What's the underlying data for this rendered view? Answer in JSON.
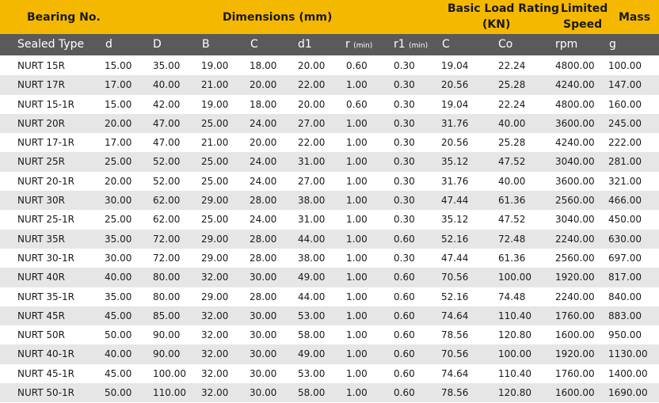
{
  "top_header": {
    "bearing_no": "Bearing No.",
    "dimensions": "Dimensions (mm)",
    "basic_load_rating": "Basic Load Rating",
    "kn": "(KN)",
    "limited": "Limited",
    "speed": "Speed",
    "mass": "Mass"
  },
  "sub_header": {
    "sealed_type": "Sealed Type",
    "d": "d",
    "D": "D",
    "B": "B",
    "C": "C",
    "d1": "d1",
    "r": "r",
    "r_min": "(min)",
    "r1": "r1",
    "r1_min": "(min)",
    "C_load": "C",
    "Co": "Co",
    "rpm": "rpm",
    "g": "g"
  },
  "rows": [
    [
      "NURT 15R",
      "15.00",
      "35.00",
      "19.00",
      "18.00",
      "20.00",
      "0.60",
      "0.30",
      "19.04",
      "22.24",
      "4800.00",
      "100.00"
    ],
    [
      "NURT 17R",
      "17.00",
      "40.00",
      "21.00",
      "20.00",
      "22.00",
      "1.00",
      "0.30",
      "20.56",
      "25.28",
      "4240.00",
      "147.00"
    ],
    [
      "NURT 15-1R",
      "15.00",
      "42.00",
      "19.00",
      "18.00",
      "20.00",
      "0.60",
      "0.30",
      "19.04",
      "22.24",
      "4800.00",
      "160.00"
    ],
    [
      "NURT 20R",
      "20.00",
      "47.00",
      "25.00",
      "24.00",
      "27.00",
      "1.00",
      "0.30",
      "31.76",
      "40.00",
      "3600.00",
      "245.00"
    ],
    [
      "NURT 17-1R",
      "17.00",
      "47.00",
      "21.00",
      "20.00",
      "22.00",
      "1.00",
      "0.30",
      "20.56",
      "25.28",
      "4240.00",
      "222.00"
    ],
    [
      "NURT 25R",
      "25.00",
      "52.00",
      "25.00",
      "24.00",
      "31.00",
      "1.00",
      "0.30",
      "35.12",
      "47.52",
      "3040.00",
      "281.00"
    ],
    [
      "NURT 20-1R",
      "20.00",
      "52.00",
      "25.00",
      "24.00",
      "27.00",
      "1.00",
      "0.30",
      "31.76",
      "40.00",
      "3600.00",
      "321.00"
    ],
    [
      "NURT 30R",
      "30.00",
      "62.00",
      "29.00",
      "28.00",
      "38.00",
      "1.00",
      "0.30",
      "47.44",
      "61.36",
      "2560.00",
      "466.00"
    ],
    [
      "NURT 25-1R",
      "25.00",
      "62.00",
      "25.00",
      "24.00",
      "31.00",
      "1.00",
      "0.30",
      "35.12",
      "47.52",
      "3040.00",
      "450.00"
    ],
    [
      "NURT 35R",
      "35.00",
      "72.00",
      "29.00",
      "28.00",
      "44.00",
      "1.00",
      "0.60",
      "52.16",
      "72.48",
      "2240.00",
      "630.00"
    ],
    [
      "NURT 30-1R",
      "30.00",
      "72.00",
      "29.00",
      "28.00",
      "38.00",
      "1.00",
      "0.30",
      "47.44",
      "61.36",
      "2560.00",
      "697.00"
    ],
    [
      "NURT 40R",
      "40.00",
      "80.00",
      "32.00",
      "30.00",
      "49.00",
      "1.00",
      "0.60",
      "70.56",
      "100.00",
      "1920.00",
      "817.00"
    ],
    [
      "NURT 35-1R",
      "35.00",
      "80.00",
      "29.00",
      "28.00",
      "44.00",
      "1.00",
      "0.60",
      "52.16",
      "74.48",
      "2240.00",
      "840.00"
    ],
    [
      "NURT 45R",
      "45.00",
      "85.00",
      "32.00",
      "30.00",
      "53.00",
      "1.00",
      "0.60",
      "74.64",
      "110.40",
      "1760.00",
      "883.00"
    ],
    [
      "NURT 50R",
      "50.00",
      "90.00",
      "32.00",
      "30.00",
      "58.00",
      "1.00",
      "0.60",
      "78.56",
      "120.80",
      "1600.00",
      "950.00"
    ],
    [
      "NURT 40-1R",
      "40.00",
      "90.00",
      "32.00",
      "30.00",
      "49.00",
      "1.00",
      "0.60",
      "70.56",
      "100.00",
      "1920.00",
      "1130.00"
    ],
    [
      "NURT 45-1R",
      "45.00",
      "100.00",
      "32.00",
      "30.00",
      "53.00",
      "1.00",
      "0.60",
      "74.64",
      "110.40",
      "1760.00",
      "1400.00"
    ],
    [
      "NURT 50-1R",
      "50.00",
      "110.00",
      "32.00",
      "30.00",
      "58.00",
      "1.00",
      "0.60",
      "78.56",
      "120.80",
      "1600.00",
      "1690.00"
    ]
  ]
}
